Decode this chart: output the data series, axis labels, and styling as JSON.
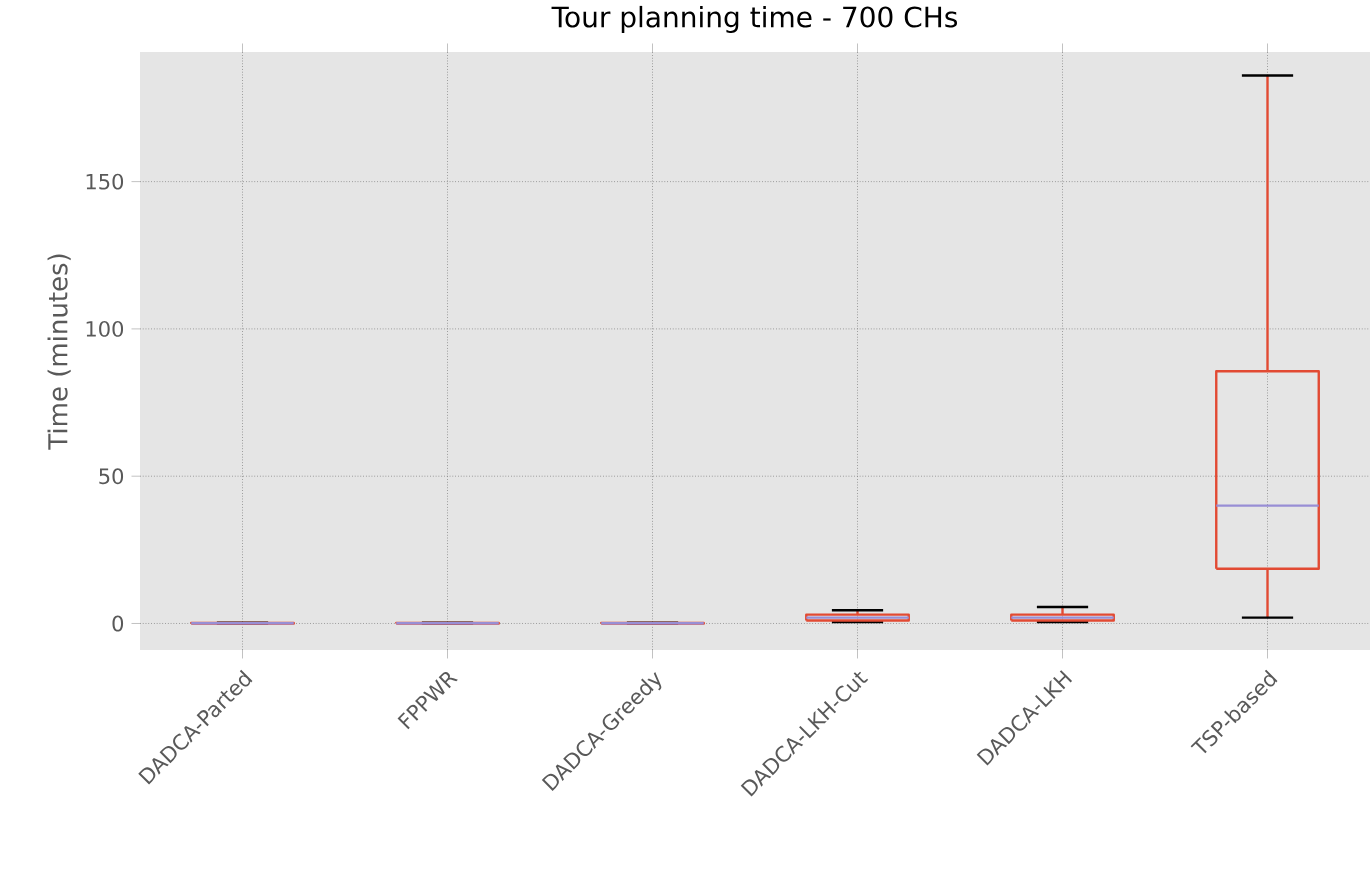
{
  "chart_data": {
    "type": "box",
    "title": "Tour planning time - 700 CHs",
    "ylabel": "Time (minutes)",
    "categories": [
      "DADCA-Parted",
      "FPPWR",
      "DADCA-Greedy",
      "DADCA-LKH-Cut",
      "DADCA-LKH",
      "TSP-based"
    ],
    "series": [
      {
        "color": "#e24a33",
        "boxes": [
          {
            "low": 0,
            "q1": 0,
            "median": 0.1,
            "q3": 0.2,
            "high": 0.3
          },
          {
            "low": 0,
            "q1": 0,
            "median": 0.1,
            "q3": 0.2,
            "high": 0.3
          },
          {
            "low": 0,
            "q1": 0,
            "median": 0.1,
            "q3": 0.2,
            "high": 0.3
          },
          {
            "low": 0.5,
            "q1": 1,
            "median": 2,
            "q3": 3,
            "high": 4.5
          },
          {
            "low": 0.5,
            "q1": 1,
            "median": 2,
            "q3": 3,
            "high": 5.6
          },
          {
            "low": 2,
            "q1": 18.6,
            "median": 40,
            "q3": 85.6,
            "high": 186
          }
        ]
      }
    ],
    "ylim": [
      -9,
      194
    ],
    "yticks": [
      0,
      50,
      100,
      150
    ],
    "grid": true
  }
}
